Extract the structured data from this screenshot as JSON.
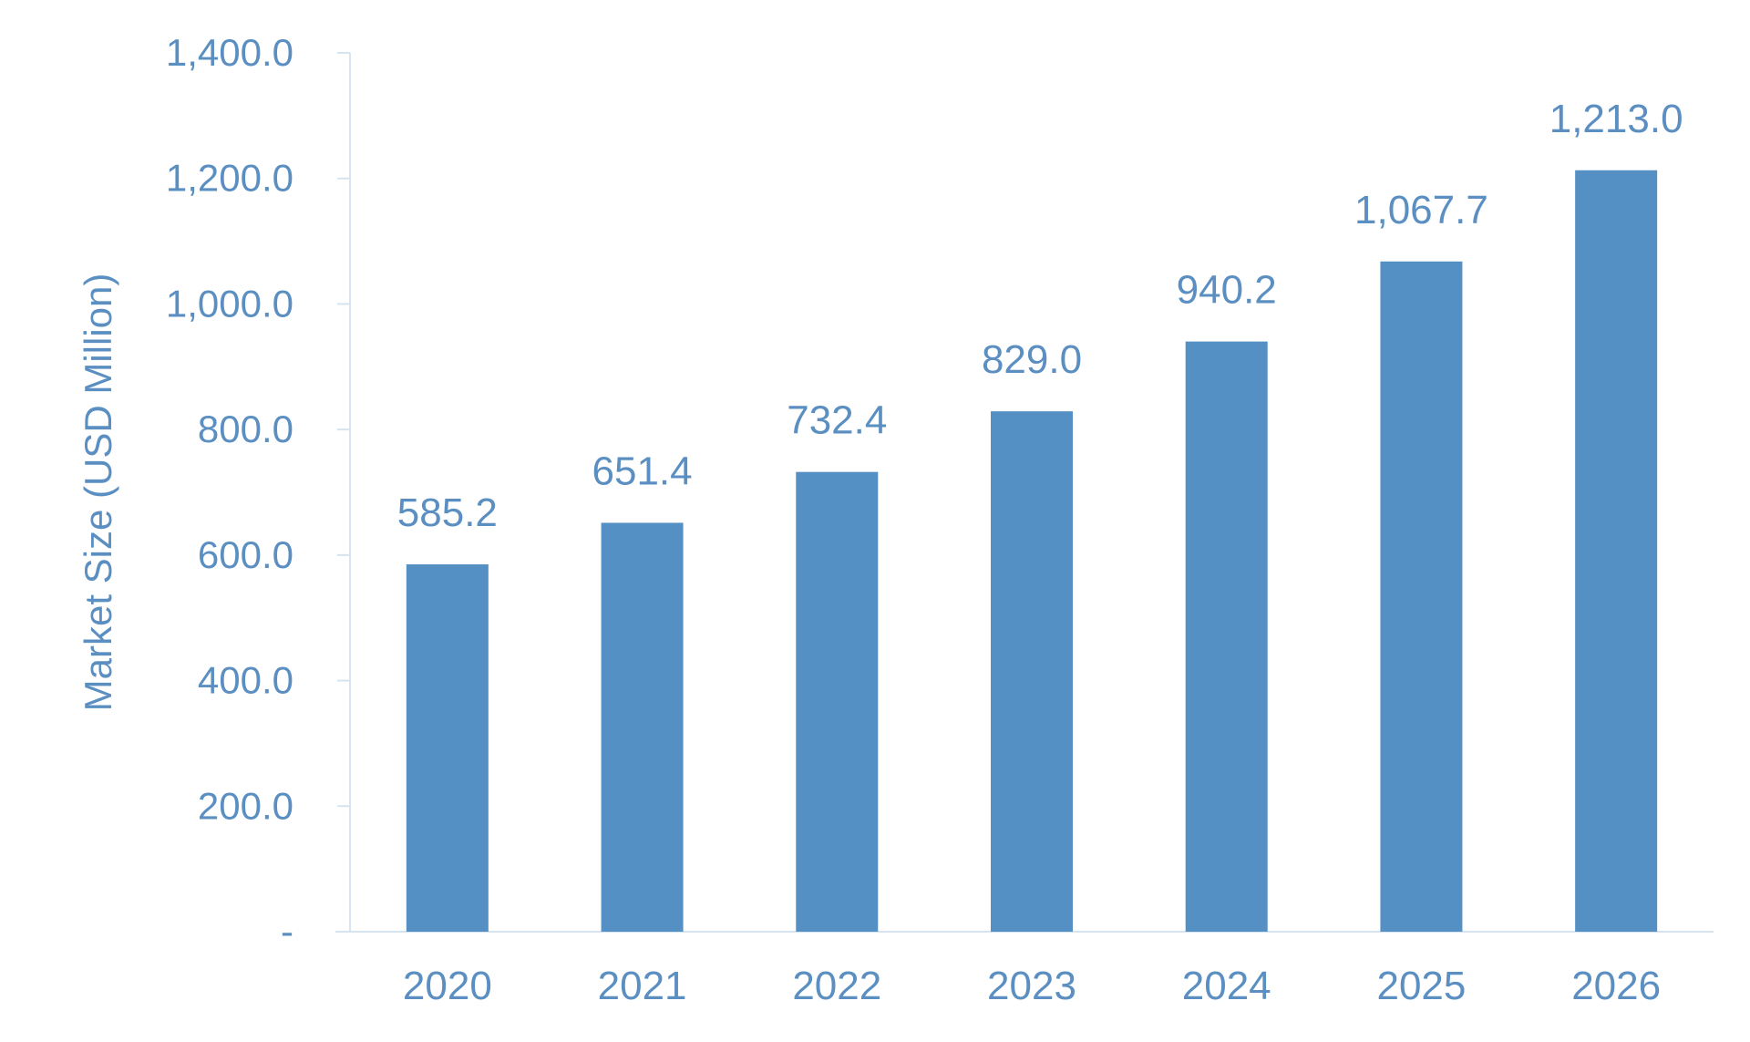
{
  "chart_data": {
    "type": "bar",
    "title": "",
    "xlabel": "",
    "ylabel": "Market Size (USD Million)",
    "categories": [
      "2020",
      "2021",
      "2022",
      "2023",
      "2024",
      "2025",
      "2026"
    ],
    "values": [
      585.2,
      651.4,
      732.4,
      829.0,
      940.2,
      1067.7,
      1213.0
    ],
    "value_labels": [
      "585.2",
      "651.4",
      "732.4",
      "829.0",
      "940.2",
      "1,067.7",
      "1,213.0"
    ],
    "ylim": [
      0,
      1400
    ],
    "y_ticks": [
      0,
      200,
      400,
      600,
      800,
      1000,
      1200,
      1400
    ],
    "y_tick_labels": [
      "-",
      "200.0",
      "400.0",
      "600.0",
      "800.0",
      "1,000.0",
      "1,200.0",
      "1,400.0"
    ],
    "grid": false,
    "legend": "none",
    "colors": {
      "bar": "#5590c4",
      "text": "#5b8fc1",
      "axis": "#d6e3f1"
    }
  }
}
